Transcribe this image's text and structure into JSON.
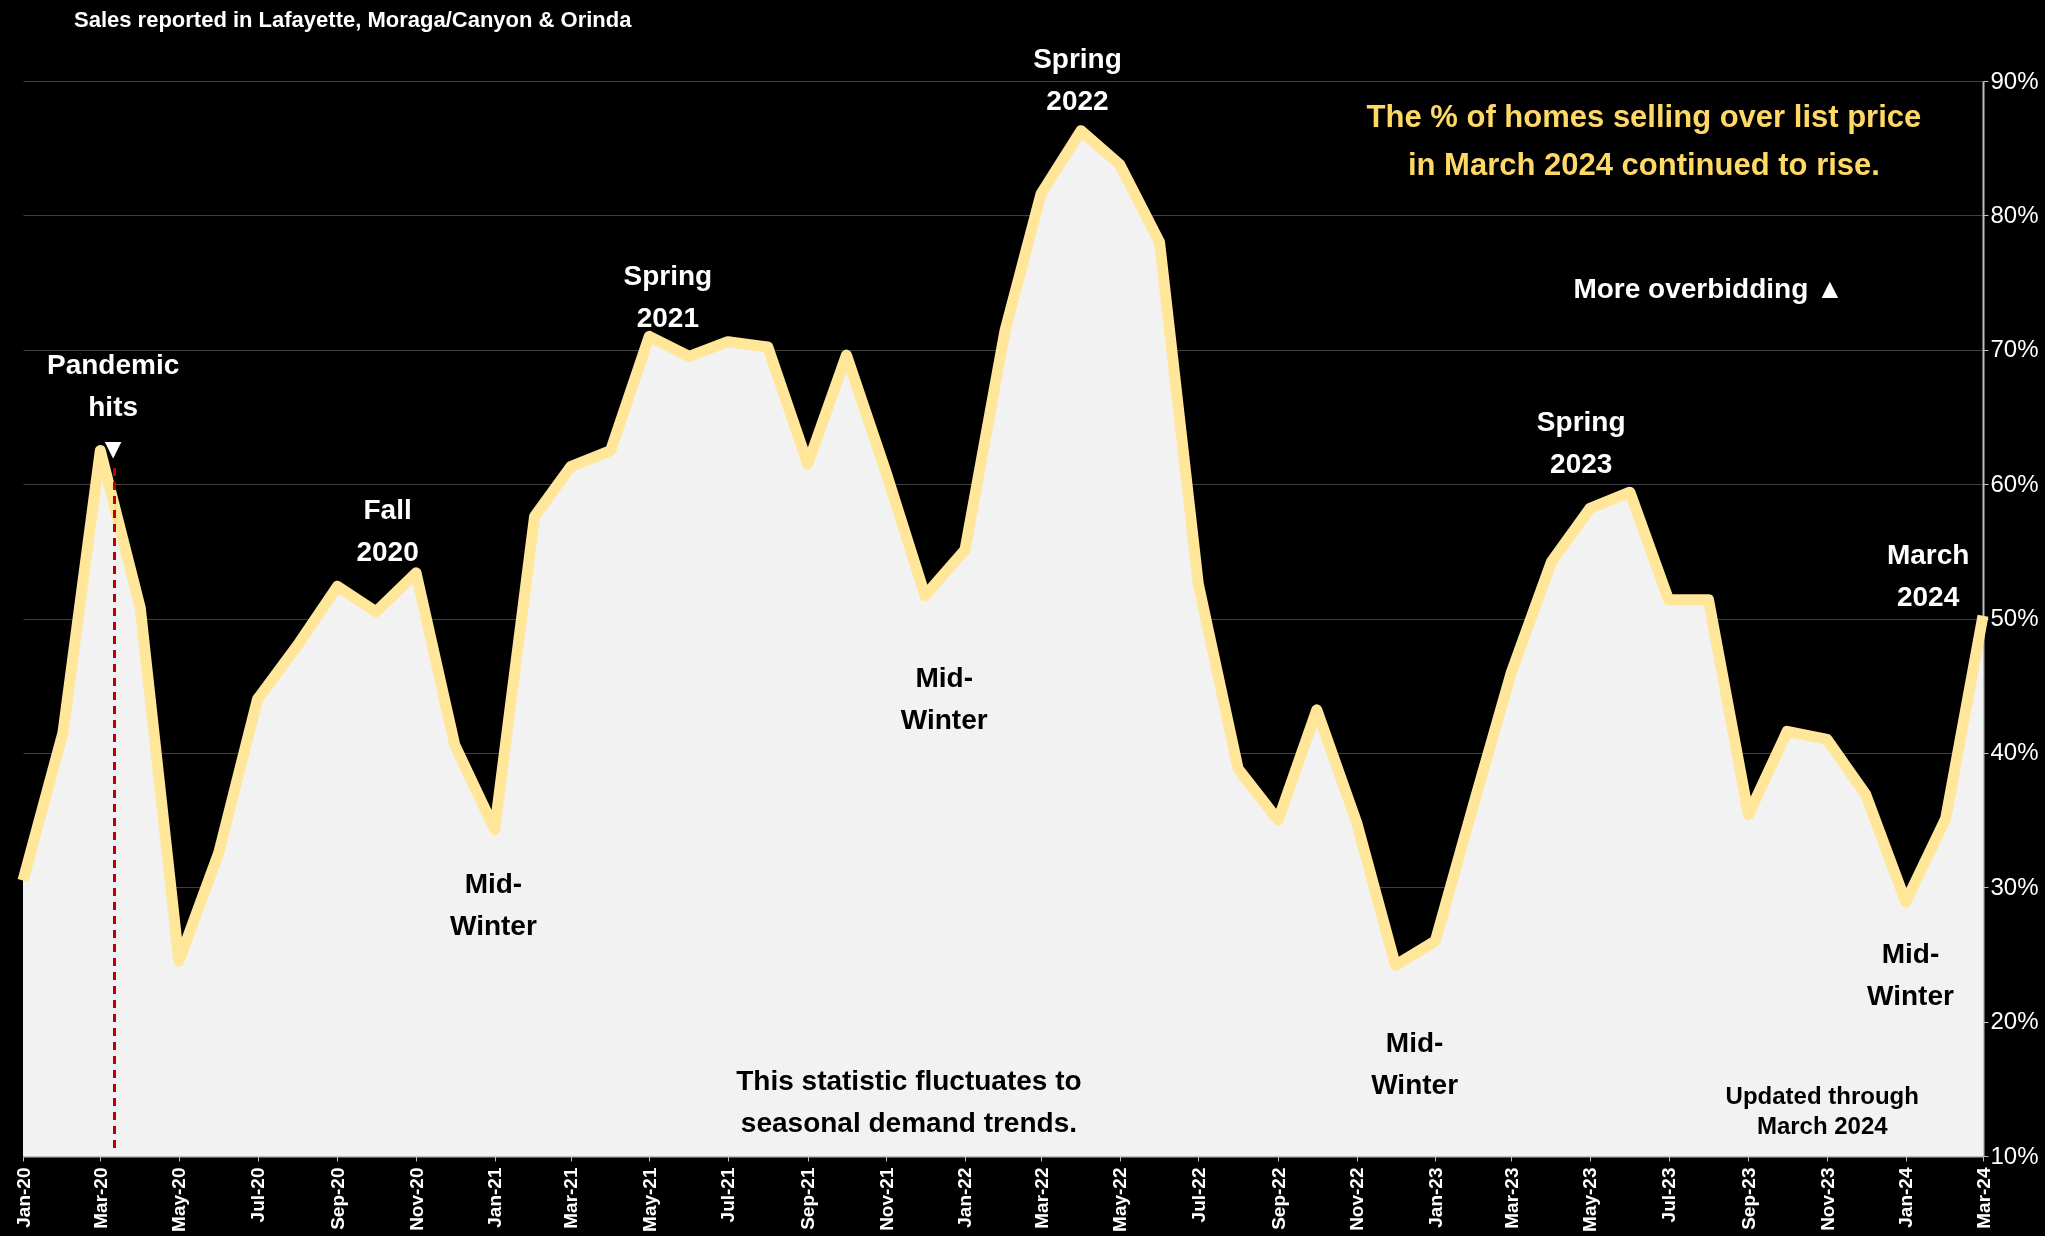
{
  "chart_data": {
    "type": "area",
    "title": "Sales reported in Lafayette, Moraga/Canyon & Orinda",
    "subtitle": "The % of homes selling over list price\nin March 2024 continued to rise.",
    "x": [
      "2020-01",
      "2020-02",
      "2020-03",
      "2020-04",
      "2020-05",
      "2020-06",
      "2020-07",
      "2020-08",
      "2020-09",
      "2020-10",
      "2020-11",
      "2020-12",
      "2021-01",
      "2021-02",
      "2021-03",
      "2021-04",
      "2021-05",
      "2021-06",
      "2021-07",
      "2021-08",
      "2021-09",
      "2021-10",
      "2021-11",
      "2021-12",
      "2022-01",
      "2022-02",
      "2022-03",
      "2022-04",
      "2022-05",
      "2022-06",
      "2022-07",
      "2022-08",
      "2022-09",
      "2022-10",
      "2022-11",
      "2022-12",
      "2023-01",
      "2023-02",
      "2023-03",
      "2023-04",
      "2023-05",
      "2023-06",
      "2023-07",
      "2023-08",
      "2023-09",
      "2023-10",
      "2023-11",
      "2023-12",
      "2024-01",
      "2024-02",
      "2024-03"
    ],
    "series": [
      {
        "color": "#ffe699",
        "values": [
          30.5,
          41.5,
          62.5,
          50.8,
          24.5,
          32.6,
          44,
          48,
          52.4,
          50.5,
          53.4,
          40.6,
          34.3,
          57.6,
          61.3,
          62.5,
          71,
          69.5,
          70.6,
          70.2,
          61.5,
          69.6,
          60.8,
          51.7,
          55.1,
          71.4,
          81.6,
          86.3,
          83.8,
          78,
          52.6,
          38.8,
          35,
          43.2,
          34.8,
          24.2,
          26,
          36.6,
          46,
          54.2,
          58.2,
          59.4,
          51.4,
          51.4,
          35.4,
          41.6,
          41,
          36.9,
          28.9,
          35.1,
          50.2
        ]
      }
    ],
    "xlim": [
      "2020-01",
      "2024-03"
    ],
    "xticks": [
      {
        "value": "2020-01",
        "label": "Jan-20"
      },
      {
        "value": "2020-03",
        "label": "Mar-20"
      },
      {
        "value": "2020-05",
        "label": "May-20"
      },
      {
        "value": "2020-07",
        "label": "Jul-20"
      },
      {
        "value": "2020-09",
        "label": "Sep-20"
      },
      {
        "value": "2020-11",
        "label": "Nov-20"
      },
      {
        "value": "2021-01",
        "label": "Jan-21"
      },
      {
        "value": "2021-03",
        "label": "Mar-21"
      },
      {
        "value": "2021-05",
        "label": "May-21"
      },
      {
        "value": "2021-07",
        "label": "Jul-21"
      },
      {
        "value": "2021-09",
        "label": "Sep-21"
      },
      {
        "value": "2021-11",
        "label": "Nov-21"
      },
      {
        "value": "2022-01",
        "label": "Jan-22"
      },
      {
        "value": "2022-03",
        "label": "Mar-22"
      },
      {
        "value": "2022-05",
        "label": "May-22"
      },
      {
        "value": "2022-07",
        "label": "Jul-22"
      },
      {
        "value": "2022-09",
        "label": "Sep-22"
      },
      {
        "value": "2022-11",
        "label": "Nov-22"
      },
      {
        "value": "2023-01",
        "label": "Jan-23"
      },
      {
        "value": "2023-03",
        "label": "Mar-23"
      },
      {
        "value": "2023-05",
        "label": "May-23"
      },
      {
        "value": "2023-07",
        "label": "Jul-23"
      },
      {
        "value": "2023-09",
        "label": "Sep-23"
      },
      {
        "value": "2023-11",
        "label": "Nov-23"
      },
      {
        "value": "2024-01",
        "label": "Jan-24"
      },
      {
        "value": "2024-03",
        "label": "Mar-24"
      }
    ],
    "ylim": [
      10,
      90
    ],
    "yticks": [
      {
        "value": 10,
        "label": "10%"
      },
      {
        "value": 20,
        "label": "20%"
      },
      {
        "value": 30,
        "label": "30%"
      },
      {
        "value": 40,
        "label": "40%"
      },
      {
        "value": 50,
        "label": "50%"
      },
      {
        "value": 60,
        "label": "60%"
      },
      {
        "value": 70,
        "label": "70%"
      },
      {
        "value": 80,
        "label": "80%"
      },
      {
        "value": 90,
        "label": "90%"
      }
    ],
    "grid": "y",
    "line_style": "solid",
    "ref_lines": [
      {
        "axis": "x",
        "value": "2020-03-12",
        "label": null,
        "color": "#c00000",
        "line_style": "dashed"
      }
    ],
    "annotations": [
      "Pandemic\nhits\n▼",
      "Fall\n2020",
      "Mid-\nWinter",
      "Spring\n2021",
      "Mid-\nWinter",
      "Spring\n2022",
      "Mid-\nWinter",
      "Spring\n2023",
      "March\n2024",
      "Mid-\nWinter",
      "More overbidding ▲",
      "This statistic fluctuates to\nseasonal demand trends.",
      "Updated through\nMarch 2024"
    ]
  }
}
